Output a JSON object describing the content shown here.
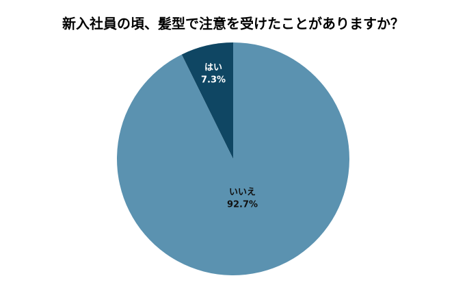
{
  "chart_data": {
    "type": "pie",
    "title": "新入社員の頃、髪型で注意を受けたことがありますか？",
    "categories": [
      "はい",
      "いいえ"
    ],
    "values": [
      7.3,
      92.7
    ],
    "value_labels": [
      "7.3%",
      "92.7%"
    ],
    "colors": [
      "#0f4663",
      "#5b92b0"
    ]
  }
}
